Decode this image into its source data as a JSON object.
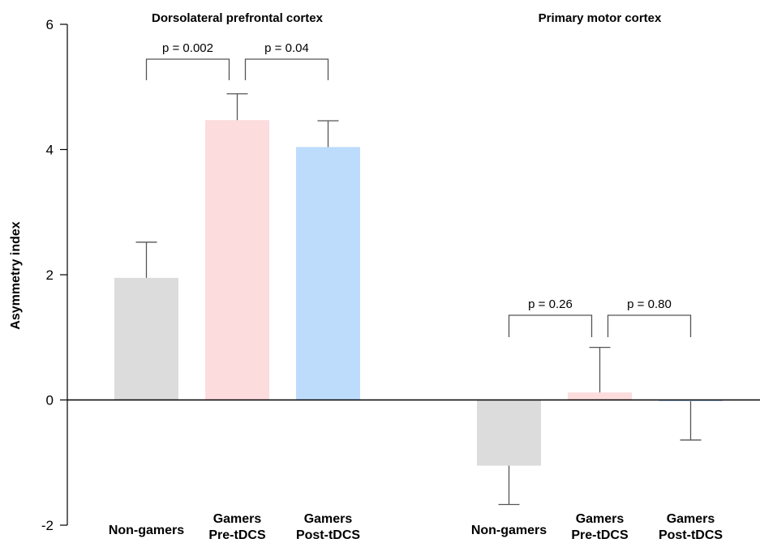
{
  "chart_data": {
    "type": "bar",
    "ylabel": "Asymmetry index",
    "ylim": [
      -2,
      6
    ],
    "yticks": [
      -2,
      0,
      2,
      4,
      6
    ],
    "ytick_labels": [
      "-2",
      "0",
      "2",
      "4",
      "6"
    ],
    "groups": [
      {
        "title": "Dorsolateral prefrontal cortex",
        "bars": [
          {
            "label_lines": [
              "Non-gamers"
            ],
            "value": 1.95,
            "error": 0.57,
            "color": "#dcdcdc"
          },
          {
            "label_lines": [
              "Gamers",
              "Pre-tDCS"
            ],
            "value": 4.47,
            "error": 0.42,
            "color": "#fcdcdd"
          },
          {
            "label_lines": [
              "Gamers",
              "Post-tDCS"
            ],
            "value": 4.04,
            "error": 0.42,
            "color": "#bddcfc"
          }
        ],
        "comparisons": [
          {
            "from": 0,
            "to": 1,
            "label": "p = 0.002"
          },
          {
            "from": 1,
            "to": 2,
            "label": "p = 0.04"
          }
        ]
      },
      {
        "title": "Primary motor cortex",
        "bars": [
          {
            "label_lines": [
              "Non-gamers"
            ],
            "value": -1.05,
            "error": 0.62,
            "color": "#dcdcdc"
          },
          {
            "label_lines": [
              "Gamers",
              "Pre-tDCS"
            ],
            "value": 0.12,
            "error": 0.72,
            "color": "#fcdcdd"
          },
          {
            "label_lines": [
              "Gamers",
              "Post-tDCS"
            ],
            "value": -0.02,
            "error": 0.62,
            "color": "#bddcfc"
          }
        ],
        "comparisons": [
          {
            "from": 0,
            "to": 1,
            "label": "p = 0.26"
          },
          {
            "from": 1,
            "to": 2,
            "label": "p = 0.80"
          }
        ]
      }
    ]
  }
}
